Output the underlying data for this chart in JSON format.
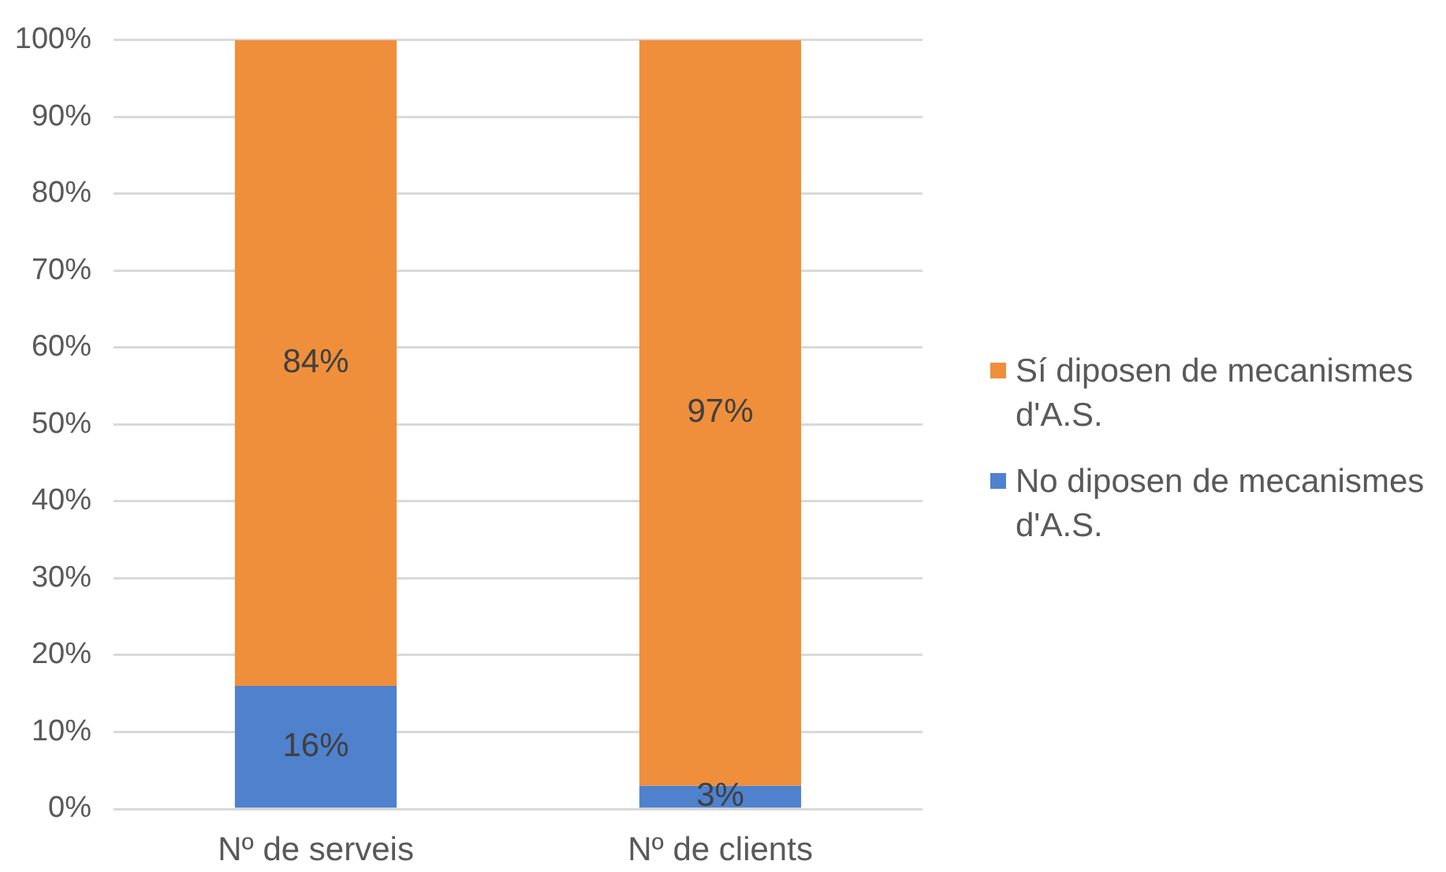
{
  "chart_data": {
    "type": "bar",
    "stacked": true,
    "categories": [
      "Nº de serveis",
      "Nº de clients"
    ],
    "series": [
      {
        "name": "No diposen de mecanismes d'A.S.",
        "color": "#4f81cd",
        "values": [
          16,
          3
        ],
        "value_labels": [
          "16%",
          "3%"
        ]
      },
      {
        "name": "Sí diposen de mecanismes d'A.S.",
        "color": "#ef8f3b",
        "values": [
          84,
          97
        ],
        "value_labels": [
          "84%",
          "97%"
        ]
      }
    ],
    "ylim": [
      0,
      100
    ],
    "yticks": [
      {
        "value": 0,
        "label": "0%"
      },
      {
        "value": 10,
        "label": "10%"
      },
      {
        "value": 20,
        "label": "20%"
      },
      {
        "value": 30,
        "label": "30%"
      },
      {
        "value": 40,
        "label": "40%"
      },
      {
        "value": 50,
        "label": "50%"
      },
      {
        "value": 60,
        "label": "60%"
      },
      {
        "value": 70,
        "label": "70%"
      },
      {
        "value": 80,
        "label": "80%"
      },
      {
        "value": 90,
        "label": "90%"
      },
      {
        "value": 100,
        "label": "100%"
      }
    ],
    "grid": "y",
    "legend": "right"
  }
}
